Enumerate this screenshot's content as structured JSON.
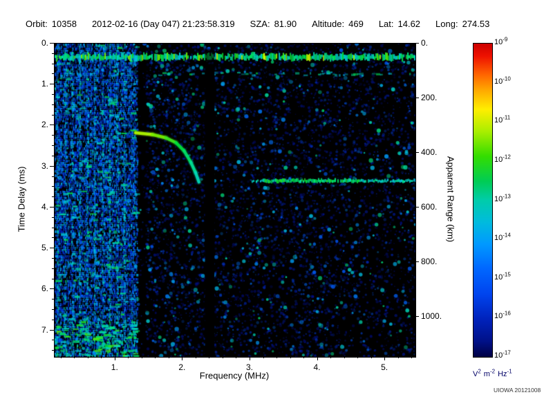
{
  "header": {
    "orbit_label": "Orbit:",
    "orbit_value": "10358",
    "datetime": "2012-02-16 (Day 047) 21:23:58.319",
    "sza_label": "SZA:",
    "sza_value": "81.90",
    "altitude_label": "Altitude:",
    "altitude_value": "469",
    "lat_label": "Lat:",
    "lat_value": "14.62",
    "long_label": "Long:",
    "long_value": "274.53"
  },
  "footer": {
    "credit": "UIOWA 20121008"
  },
  "colors": {
    "background": "#ffffff",
    "plot_background": "#000000",
    "axis": "#000000",
    "unit_label": "#000066"
  },
  "chart_data": {
    "type": "heatmap",
    "xlabel": "Frequency (MHz)",
    "ylabel_left": "Time Delay (ms)",
    "ylabel_right": "Apparent Range (km)",
    "x_axis": {
      "range_mhz": [
        0.1,
        5.45
      ],
      "minor_step_mhz": 0.2,
      "major_ticks": [
        {
          "v": 1,
          "t": "1."
        },
        {
          "v": 2,
          "t": "2."
        },
        {
          "v": 3,
          "t": "3."
        },
        {
          "v": 4,
          "t": "4."
        },
        {
          "v": 5,
          "t": "5."
        }
      ]
    },
    "y_axis": {
      "range_ms": [
        0,
        7.65
      ],
      "minor_step_ms": 0.25,
      "major_ticks": [
        {
          "v": 0,
          "t": "0."
        },
        {
          "v": 1,
          "t": "1."
        },
        {
          "v": 2,
          "t": "2."
        },
        {
          "v": 3,
          "t": "3."
        },
        {
          "v": 4,
          "t": "4."
        },
        {
          "v": 5,
          "t": "5."
        },
        {
          "v": 6,
          "t": "6."
        },
        {
          "v": 7,
          "t": "7."
        }
      ]
    },
    "right_axis": {
      "km_per_ms": 150,
      "major_ticks": [
        {
          "v": 0,
          "t": "0."
        },
        {
          "v": 200,
          "t": "200."
        },
        {
          "v": 400,
          "t": "400."
        },
        {
          "v": 600,
          "t": "600."
        },
        {
          "v": 800,
          "t": "800."
        },
        {
          "v": 1000,
          "t": "1000."
        }
      ]
    },
    "colorbar": {
      "scale": "log10",
      "base": "10",
      "tick_exponents": [
        "-9",
        "-10",
        "-11",
        "-12",
        "-13",
        "-14",
        "-15",
        "-16",
        "-17"
      ],
      "unit_parts": [
        [
          "V",
          "2"
        ],
        [
          "m",
          "-2"
        ],
        [
          "Hz",
          "-1"
        ]
      ],
      "gradient_stops": [
        [
          0,
          "#cc0000"
        ],
        [
          0.04,
          "#ee1100"
        ],
        [
          0.1,
          "#ff6600"
        ],
        [
          0.15,
          "#ffaa00"
        ],
        [
          0.21,
          "#ffee00"
        ],
        [
          0.28,
          "#aaee00"
        ],
        [
          0.36,
          "#33dd00"
        ],
        [
          0.44,
          "#00cc55"
        ],
        [
          0.5,
          "#00ccaa"
        ],
        [
          0.57,
          "#00bbdd"
        ],
        [
          0.64,
          "#0099ff"
        ],
        [
          0.72,
          "#0066ff"
        ],
        [
          0.8,
          "#0044ee"
        ],
        [
          0.88,
          "#0022bb"
        ],
        [
          0.95,
          "#001188"
        ],
        [
          1,
          "#000044"
        ]
      ]
    },
    "features": {
      "seed": 20121008,
      "interference_max_mhz": 1.32,
      "gap_band_mhz": [
        1.32,
        1.46
      ],
      "harmonic_lines_mhz": [
        0.14,
        0.25,
        0.36,
        0.47,
        0.58,
        0.69,
        0.8,
        0.91,
        1.02,
        1.13
      ],
      "first_reflection": {
        "ms": 0.33
      },
      "second_row_ms": 0.72,
      "ionosphere_trace_mhz_ms": [
        [
          1.3,
          2.18
        ],
        [
          1.55,
          2.22
        ],
        [
          1.75,
          2.3
        ],
        [
          1.9,
          2.42
        ],
        [
          2.02,
          2.62
        ],
        [
          2.12,
          2.9
        ],
        [
          2.19,
          3.15
        ],
        [
          2.24,
          3.38
        ]
      ],
      "surface_echo": {
        "ms": 3.35,
        "x_start_mhz": 3.02,
        "x_end_mhz": 5.45
      },
      "blackout_band_mhz": [
        2.33,
        2.47
      ]
    }
  }
}
